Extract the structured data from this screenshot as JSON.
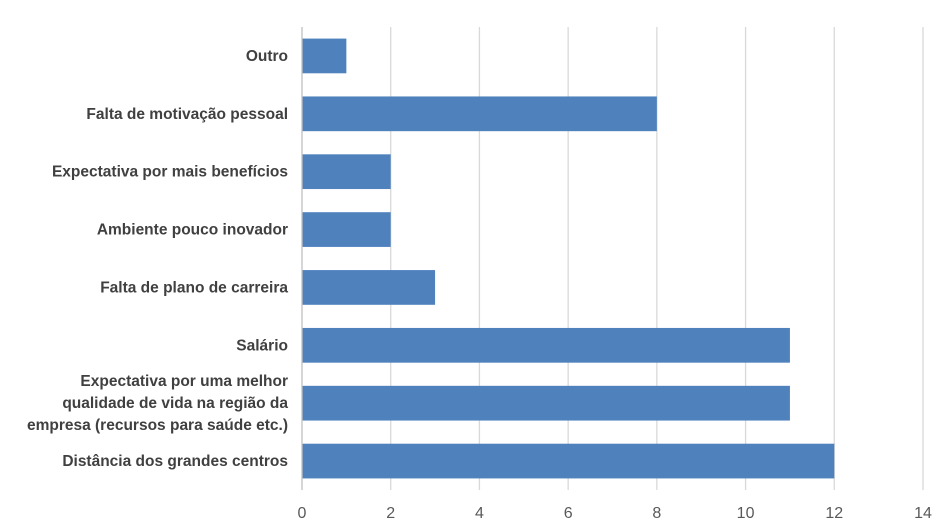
{
  "chart_data": {
    "type": "bar",
    "orientation": "horizontal",
    "title": "",
    "xlabel": "",
    "ylabel": "",
    "categories": [
      [
        "Outro"
      ],
      [
        "Falta de motivação pessoal"
      ],
      [
        "Expectativa por mais benefícios"
      ],
      [
        "Ambiente pouco inovador"
      ],
      [
        "Falta de plano de carreira"
      ],
      [
        "Salário"
      ],
      [
        "Expectativa por uma melhor",
        "qualidade de vida na região da",
        "empresa (recursos para saúde etc.)"
      ],
      [
        "Distância dos grandes centros"
      ]
    ],
    "values": [
      1,
      8,
      2,
      2,
      3,
      11,
      11,
      12
    ],
    "xlim": [
      0,
      14
    ],
    "xticks": [
      "0",
      "2",
      "4",
      "6",
      "8",
      "10",
      "12",
      "14"
    ],
    "grid": "vertical",
    "bar_color": "#4f81bd",
    "legend": "none"
  }
}
